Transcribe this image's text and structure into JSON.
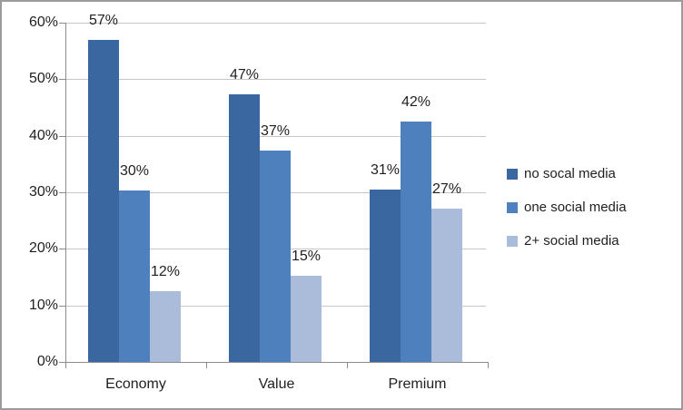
{
  "chart_data": {
    "type": "bar",
    "title": "",
    "xlabel": "",
    "ylabel": "",
    "categories": [
      "Economy",
      "Value",
      "Premium"
    ],
    "series": [
      {
        "name": "no socal media",
        "color": "#3a67a0",
        "values": [
          57.0,
          47.3,
          30.5
        ],
        "labels": [
          "57%",
          "47%",
          "31%"
        ]
      },
      {
        "name": "one social media",
        "color": "#4e80bd",
        "values": [
          30.3,
          37.3,
          42.5
        ],
        "labels": [
          "30%",
          "37%",
          "42%"
        ]
      },
      {
        "name": "2+ social media",
        "color": "#abbcdb",
        "values": [
          12.5,
          15.3,
          27.1
        ],
        "labels": [
          "12%",
          "15%",
          "27%"
        ]
      }
    ],
    "ylim": [
      0,
      60
    ],
    "ytick_step": 10,
    "ytick_labels": [
      "0%",
      "10%",
      "20%",
      "30%",
      "40%",
      "50%",
      "60%"
    ],
    "grid": true,
    "legend_position": "right"
  },
  "colors": {
    "gridline": "#c6c6c6",
    "axis": "#8c8c8c",
    "frame_border": "#9b9b9b",
    "text": "#1f1f1f",
    "background": "#ffffff"
  }
}
